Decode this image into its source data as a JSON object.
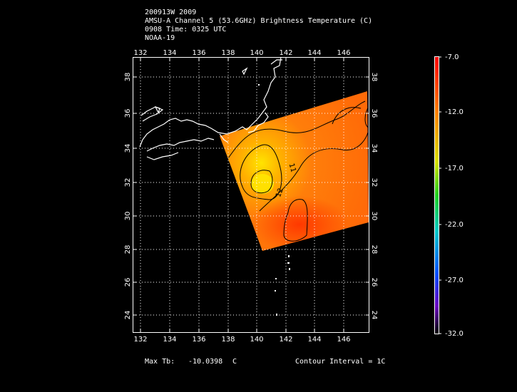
{
  "header": {
    "line1": "200913W 2009",
    "line2": "AMSU-A Channel 5 (53.6GHz) Brightness Temperature (C)",
    "line3": "0908 Time: 0325 UTC",
    "line4": "NOAA-19"
  },
  "map": {
    "lon_ticks": [
      "132",
      "134",
      "136",
      "138",
      "140",
      "142",
      "144",
      "146"
    ],
    "lat_ticks": [
      "24",
      "26",
      "28",
      "30",
      "32",
      "34",
      "36",
      "38"
    ],
    "contour_labels": [
      "11",
      "12"
    ]
  },
  "colorbar": {
    "labels": [
      "-7.0",
      "-12.0",
      "-17.0",
      "-22.0",
      "-27.0",
      "-32.0"
    ],
    "range": [
      -32.0,
      -7.0
    ]
  },
  "footer": {
    "max_tb_label": "Max Tb:",
    "max_tb_value": "-10.0398",
    "max_tb_unit": "C",
    "contour_interval": "Contour Interval = 1C"
  }
}
